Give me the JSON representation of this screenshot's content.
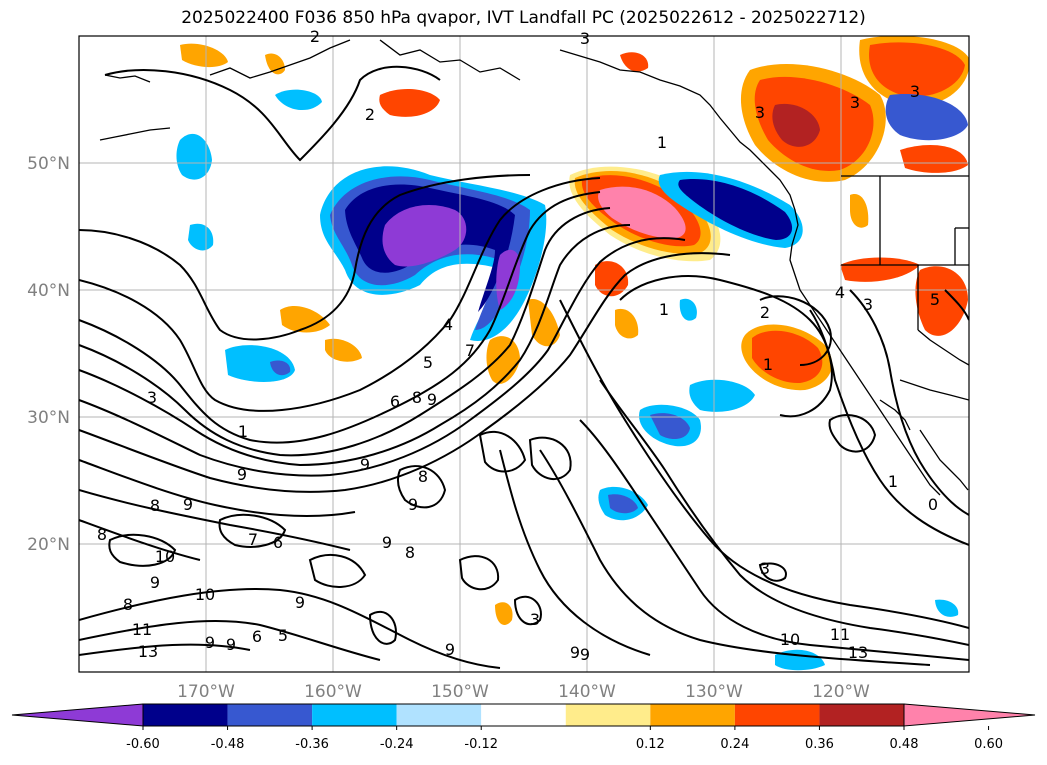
{
  "title": "2025022400 F036 850 hPa qvapor, IVT Landfall PC (2025022612 - 2025022712)",
  "map": {
    "lat_labels": [
      "50°N",
      "40°N",
      "30°N",
      "20°N"
    ],
    "lon_labels": [
      "170°W",
      "160°W",
      "150°W",
      "140°W",
      "130°W",
      "120°W"
    ],
    "contour_labels": [
      "3",
      "2",
      "3",
      "3",
      "3",
      "2",
      "1",
      "4",
      "5",
      "7",
      "6",
      "8",
      "9",
      "3",
      "1",
      "9",
      "9",
      "8",
      "9",
      "2",
      "1",
      "3",
      "1",
      "4",
      "5",
      "0",
      "1",
      "9",
      "8",
      "8",
      "10",
      "9",
      "10",
      "8",
      "9",
      "6",
      "5",
      "11",
      "13",
      "7",
      "6",
      "9",
      "9",
      "9",
      "8",
      "9",
      "9",
      "9",
      "3",
      "10",
      "11",
      "13",
      "3"
    ]
  },
  "colorbar": {
    "colors": [
      "#8e3ad6",
      "#00008b",
      "#3758d0",
      "#00bfff",
      "#b0e2ff",
      "#ffffff",
      "#ffec8b",
      "#ffa500",
      "#ff4500",
      "#b22222",
      "#ff82ab"
    ],
    "ticks": [
      "-0.60",
      "-0.48",
      "-0.36",
      "-0.24",
      "-0.12",
      "0.12",
      "0.24",
      "0.36",
      "0.48",
      "0.60"
    ]
  },
  "colors": {
    "coast": "#000000",
    "grid": "#b4b4b4",
    "contour": "#000000"
  }
}
